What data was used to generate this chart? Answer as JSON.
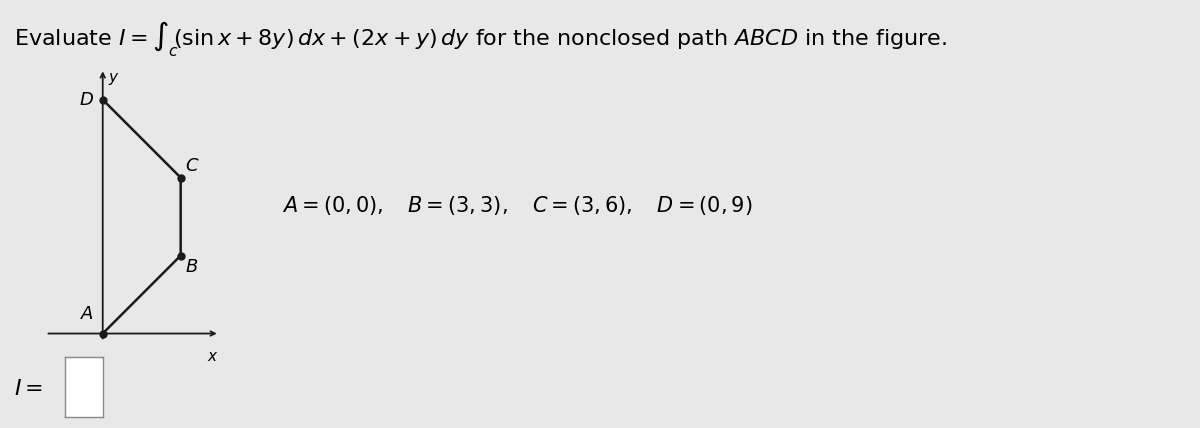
{
  "points": {
    "A": [
      0,
      0
    ],
    "B": [
      3,
      3
    ],
    "C": [
      3,
      6
    ],
    "D": [
      0,
      9
    ]
  },
  "path_color": "#1a1a1a",
  "dot_color": "#1a1a1a",
  "axis_color": "#1a1a1a",
  "bg_color": "#e8e8e8",
  "plot_bg_color": "#ffffff",
  "title_fontsize": 16,
  "label_fontsize": 15,
  "point_label_fontsize": 13,
  "fig_width": 12.0,
  "fig_height": 4.28,
  "coords_text": "A = (0,0),    B = (3,3),    C = (3,6),    D = (0,9)"
}
